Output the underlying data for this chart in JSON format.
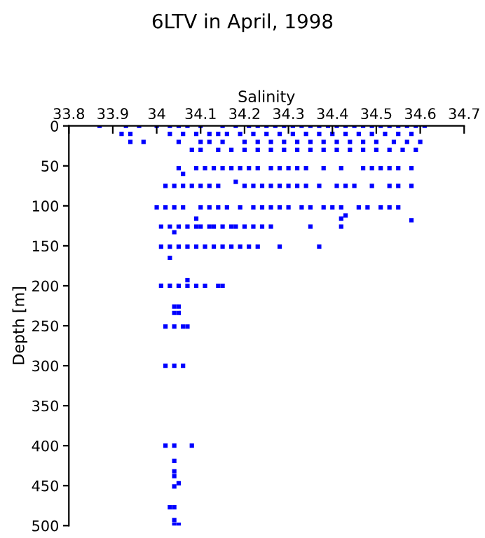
{
  "chart_data": {
    "type": "scatter",
    "title": "6LTV in April, 1998",
    "xlabel": "Salinity",
    "ylabel": "Depth [m]",
    "xlim": [
      33.8,
      34.7
    ],
    "xticks": [
      33.8,
      33.9,
      {
        "value": 34.0,
        "label": "34"
      },
      34.1,
      34.2,
      34.3,
      34.4,
      34.5,
      34.6,
      34.7
    ],
    "ylim": [
      500,
      0
    ],
    "yticks": [
      0,
      50,
      100,
      150,
      200,
      250,
      300,
      350,
      400,
      450,
      500
    ],
    "grid": false,
    "marker": "square",
    "legend": false,
    "series": [
      {
        "color": "#0000ff",
        "x": [
          33.87,
          33.93,
          33.96,
          34.0,
          34.03,
          34.05,
          34.07,
          34.1,
          34.15,
          34.18,
          34.21,
          34.23,
          34.25,
          34.27,
          34.29,
          34.31,
          34.33,
          34.35,
          34.37,
          34.39,
          34.41,
          34.43,
          34.45,
          34.47,
          34.49,
          34.51,
          34.53,
          34.55,
          34.57,
          34.59,
          34.61,
          33.92,
          33.94,
          34.03,
          34.06,
          34.09,
          34.12,
          34.14,
          34.16,
          34.19,
          34.22,
          34.25,
          34.28,
          34.31,
          34.34,
          34.37,
          34.4,
          34.43,
          34.46,
          34.49,
          34.52,
          34.55,
          34.58,
          33.94,
          33.97,
          34.05,
          34.1,
          34.12,
          34.15,
          34.2,
          34.23,
          34.26,
          34.29,
          34.32,
          34.35,
          34.38,
          34.41,
          34.44,
          34.47,
          34.5,
          34.54,
          34.57,
          34.6,
          34.08,
          34.1,
          34.14,
          34.17,
          34.2,
          34.23,
          34.26,
          34.29,
          34.32,
          34.35,
          34.38,
          34.41,
          34.44,
          34.47,
          34.5,
          34.53,
          34.56,
          34.59,
          34.05,
          34.09,
          34.11,
          34.13,
          34.15,
          34.17,
          34.19,
          34.21,
          34.23,
          34.26,
          34.28,
          34.3,
          34.32,
          34.34,
          34.38,
          34.42,
          34.47,
          34.49,
          34.51,
          34.53,
          34.55,
          34.58,
          34.06,
          34.18,
          34.02,
          34.04,
          34.06,
          34.08,
          34.1,
          34.12,
          34.14,
          34.2,
          34.22,
          34.24,
          34.26,
          34.28,
          34.3,
          34.32,
          34.34,
          34.37,
          34.41,
          34.43,
          34.45,
          34.49,
          34.53,
          34.55,
          34.58,
          34.0,
          34.02,
          34.04,
          34.06,
          34.1,
          34.12,
          34.14,
          34.16,
          34.19,
          34.22,
          34.24,
          34.26,
          34.28,
          34.3,
          34.33,
          34.35,
          34.38,
          34.4,
          34.42,
          34.46,
          34.48,
          34.51,
          34.53,
          34.55,
          34.09,
          34.42,
          34.43,
          34.58,
          34.01,
          34.03,
          34.05,
          34.07,
          34.09,
          34.1,
          34.12,
          34.13,
          34.15,
          34.17,
          34.18,
          34.2,
          34.22,
          34.24,
          34.26,
          34.35,
          34.42,
          34.04,
          34.01,
          34.03,
          34.05,
          34.07,
          34.09,
          34.11,
          34.13,
          34.15,
          34.17,
          34.19,
          34.21,
          34.23,
          34.28,
          34.37,
          34.03,
          34.07,
          34.01,
          34.03,
          34.05,
          34.07,
          34.09,
          34.11,
          34.14,
          34.15,
          34.04,
          34.05,
          34.04,
          34.05,
          34.02,
          34.04,
          34.06,
          34.07,
          34.02,
          34.04,
          34.06,
          34.02,
          34.04,
          34.08,
          34.04,
          34.04,
          34.04,
          34.05,
          34.04,
          34.03,
          34.04,
          34.04,
          34.04,
          34.05
        ],
        "values": [
          0,
          0,
          0,
          0,
          0,
          0,
          0,
          0,
          0,
          0,
          0,
          0,
          0,
          0,
          0,
          0,
          0,
          0,
          0,
          0,
          0,
          0,
          0,
          0,
          0,
          0,
          0,
          0,
          0,
          0,
          0,
          10,
          10,
          10,
          10,
          10,
          10,
          10,
          10,
          10,
          10,
          10,
          10,
          10,
          10,
          10,
          10,
          10,
          10,
          10,
          10,
          10,
          10,
          20,
          20,
          20,
          20,
          20,
          20,
          20,
          20,
          20,
          20,
          20,
          20,
          20,
          20,
          20,
          20,
          20,
          20,
          20,
          20,
          30,
          30,
          30,
          30,
          30,
          30,
          30,
          30,
          30,
          30,
          30,
          30,
          30,
          30,
          30,
          30,
          30,
          30,
          53,
          53,
          53,
          53,
          53,
          53,
          53,
          53,
          53,
          53,
          53,
          53,
          53,
          53,
          53,
          53,
          53,
          53,
          53,
          53,
          53,
          53,
          60,
          70,
          75,
          75,
          75,
          75,
          75,
          75,
          75,
          75,
          75,
          75,
          75,
          75,
          75,
          75,
          75,
          75,
          75,
          75,
          75,
          75,
          75,
          75,
          75,
          102,
          102,
          102,
          102,
          102,
          102,
          102,
          102,
          102,
          102,
          102,
          102,
          102,
          102,
          102,
          102,
          102,
          102,
          102,
          102,
          102,
          102,
          102,
          102,
          116,
          116,
          112,
          118,
          126,
          126,
          126,
          126,
          126,
          126,
          126,
          126,
          126,
          126,
          126,
          126,
          126,
          126,
          126,
          126,
          126,
          133,
          151,
          151,
          151,
          151,
          151,
          151,
          151,
          151,
          151,
          151,
          151,
          151,
          151,
          151,
          165,
          193,
          200,
          200,
          200,
          200,
          200,
          200,
          200,
          200,
          226,
          226,
          234,
          234,
          251,
          251,
          251,
          251,
          300,
          300,
          300,
          400,
          400,
          400,
          419,
          432,
          438,
          447,
          451,
          477,
          477,
          493,
          499,
          499
        ]
      }
    ]
  }
}
